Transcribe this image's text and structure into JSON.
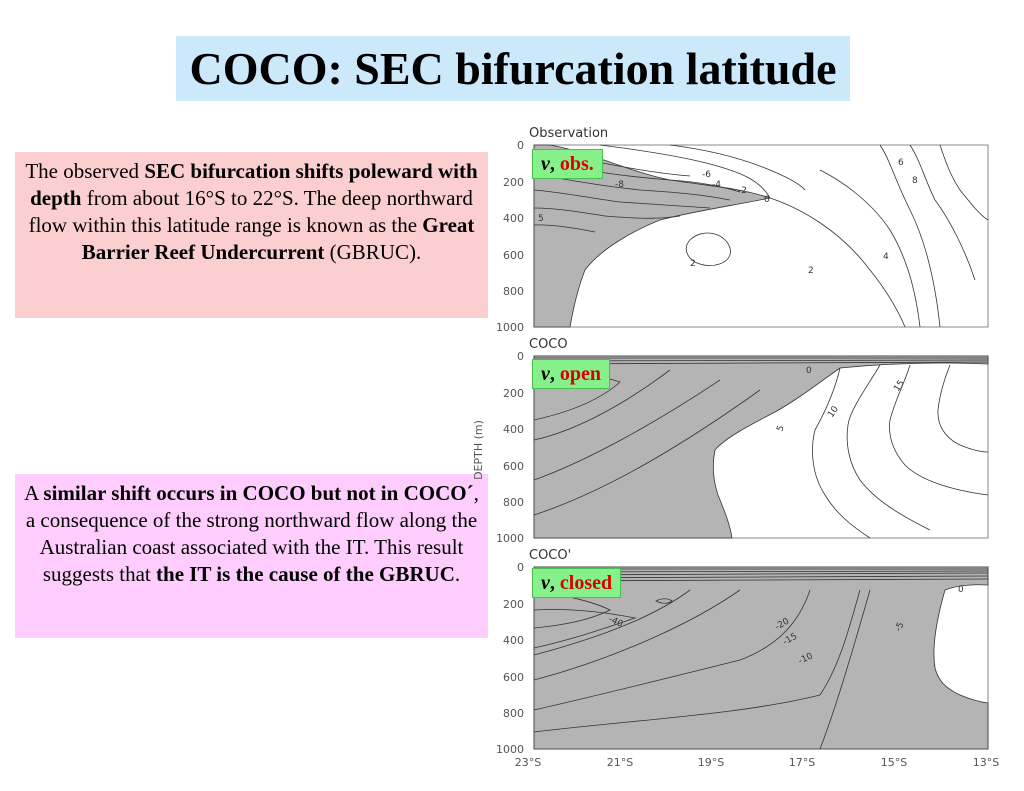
{
  "title": "COCO: SEC bifurcation latitude",
  "note1": {
    "p1": "The observed ",
    "b1": "SEC bifurcation shifts poleward with depth",
    "p2": " from about 16°S to 22°S.  The deep northward flow within this latitude range is known as the ",
    "b2": "Great Barrier Reef Undercurrent",
    "p3": " (GBRUC)."
  },
  "note2": {
    "p1": "A ",
    "b1": "similar shift occurs in COCO but not in COCO´",
    "p2": ", a consequence of the strong northward flow along the Australian coast associated with the IT.  This result suggests that ",
    "b2": "the IT is the cause of the GBRUC",
    "p3": "."
  },
  "y_axis_label": "DEPTH (m)",
  "x_ticks": [
    "23°S",
    "21°S",
    "19°S",
    "17°S",
    "15°S",
    "13°S"
  ],
  "depth_ticks": [
    "0",
    "200",
    "400",
    "600",
    "800",
    "1000"
  ],
  "panels": [
    {
      "title": "Observation",
      "tag_var": "v",
      "tag_sep": ", ",
      "tag_label": "obs.",
      "contour_labels": [
        "-8",
        "-6",
        "-4",
        "-2",
        "0",
        "2",
        "2",
        "4",
        "6",
        "8",
        "5"
      ]
    },
    {
      "title": "COCO",
      "tag_var": "v",
      "tag_sep": ", ",
      "tag_label": "open",
      "contour_labels": [
        "0",
        "5",
        "10",
        "15"
      ]
    },
    {
      "title": "COCO'",
      "tag_var": "v",
      "tag_sep": ", ",
      "tag_label": "closed",
      "contour_labels": [
        "-40",
        "-20",
        "-15",
        "-10",
        "-5",
        "0"
      ]
    }
  ],
  "colors": {
    "title_bg": "#cce8fb",
    "note1_bg": "#fbcfcf",
    "note2_bg": "#ffcdfd",
    "tag_bg": "#86f08a",
    "tag_text": "#dd0000",
    "shade": "#b4b4b4"
  }
}
